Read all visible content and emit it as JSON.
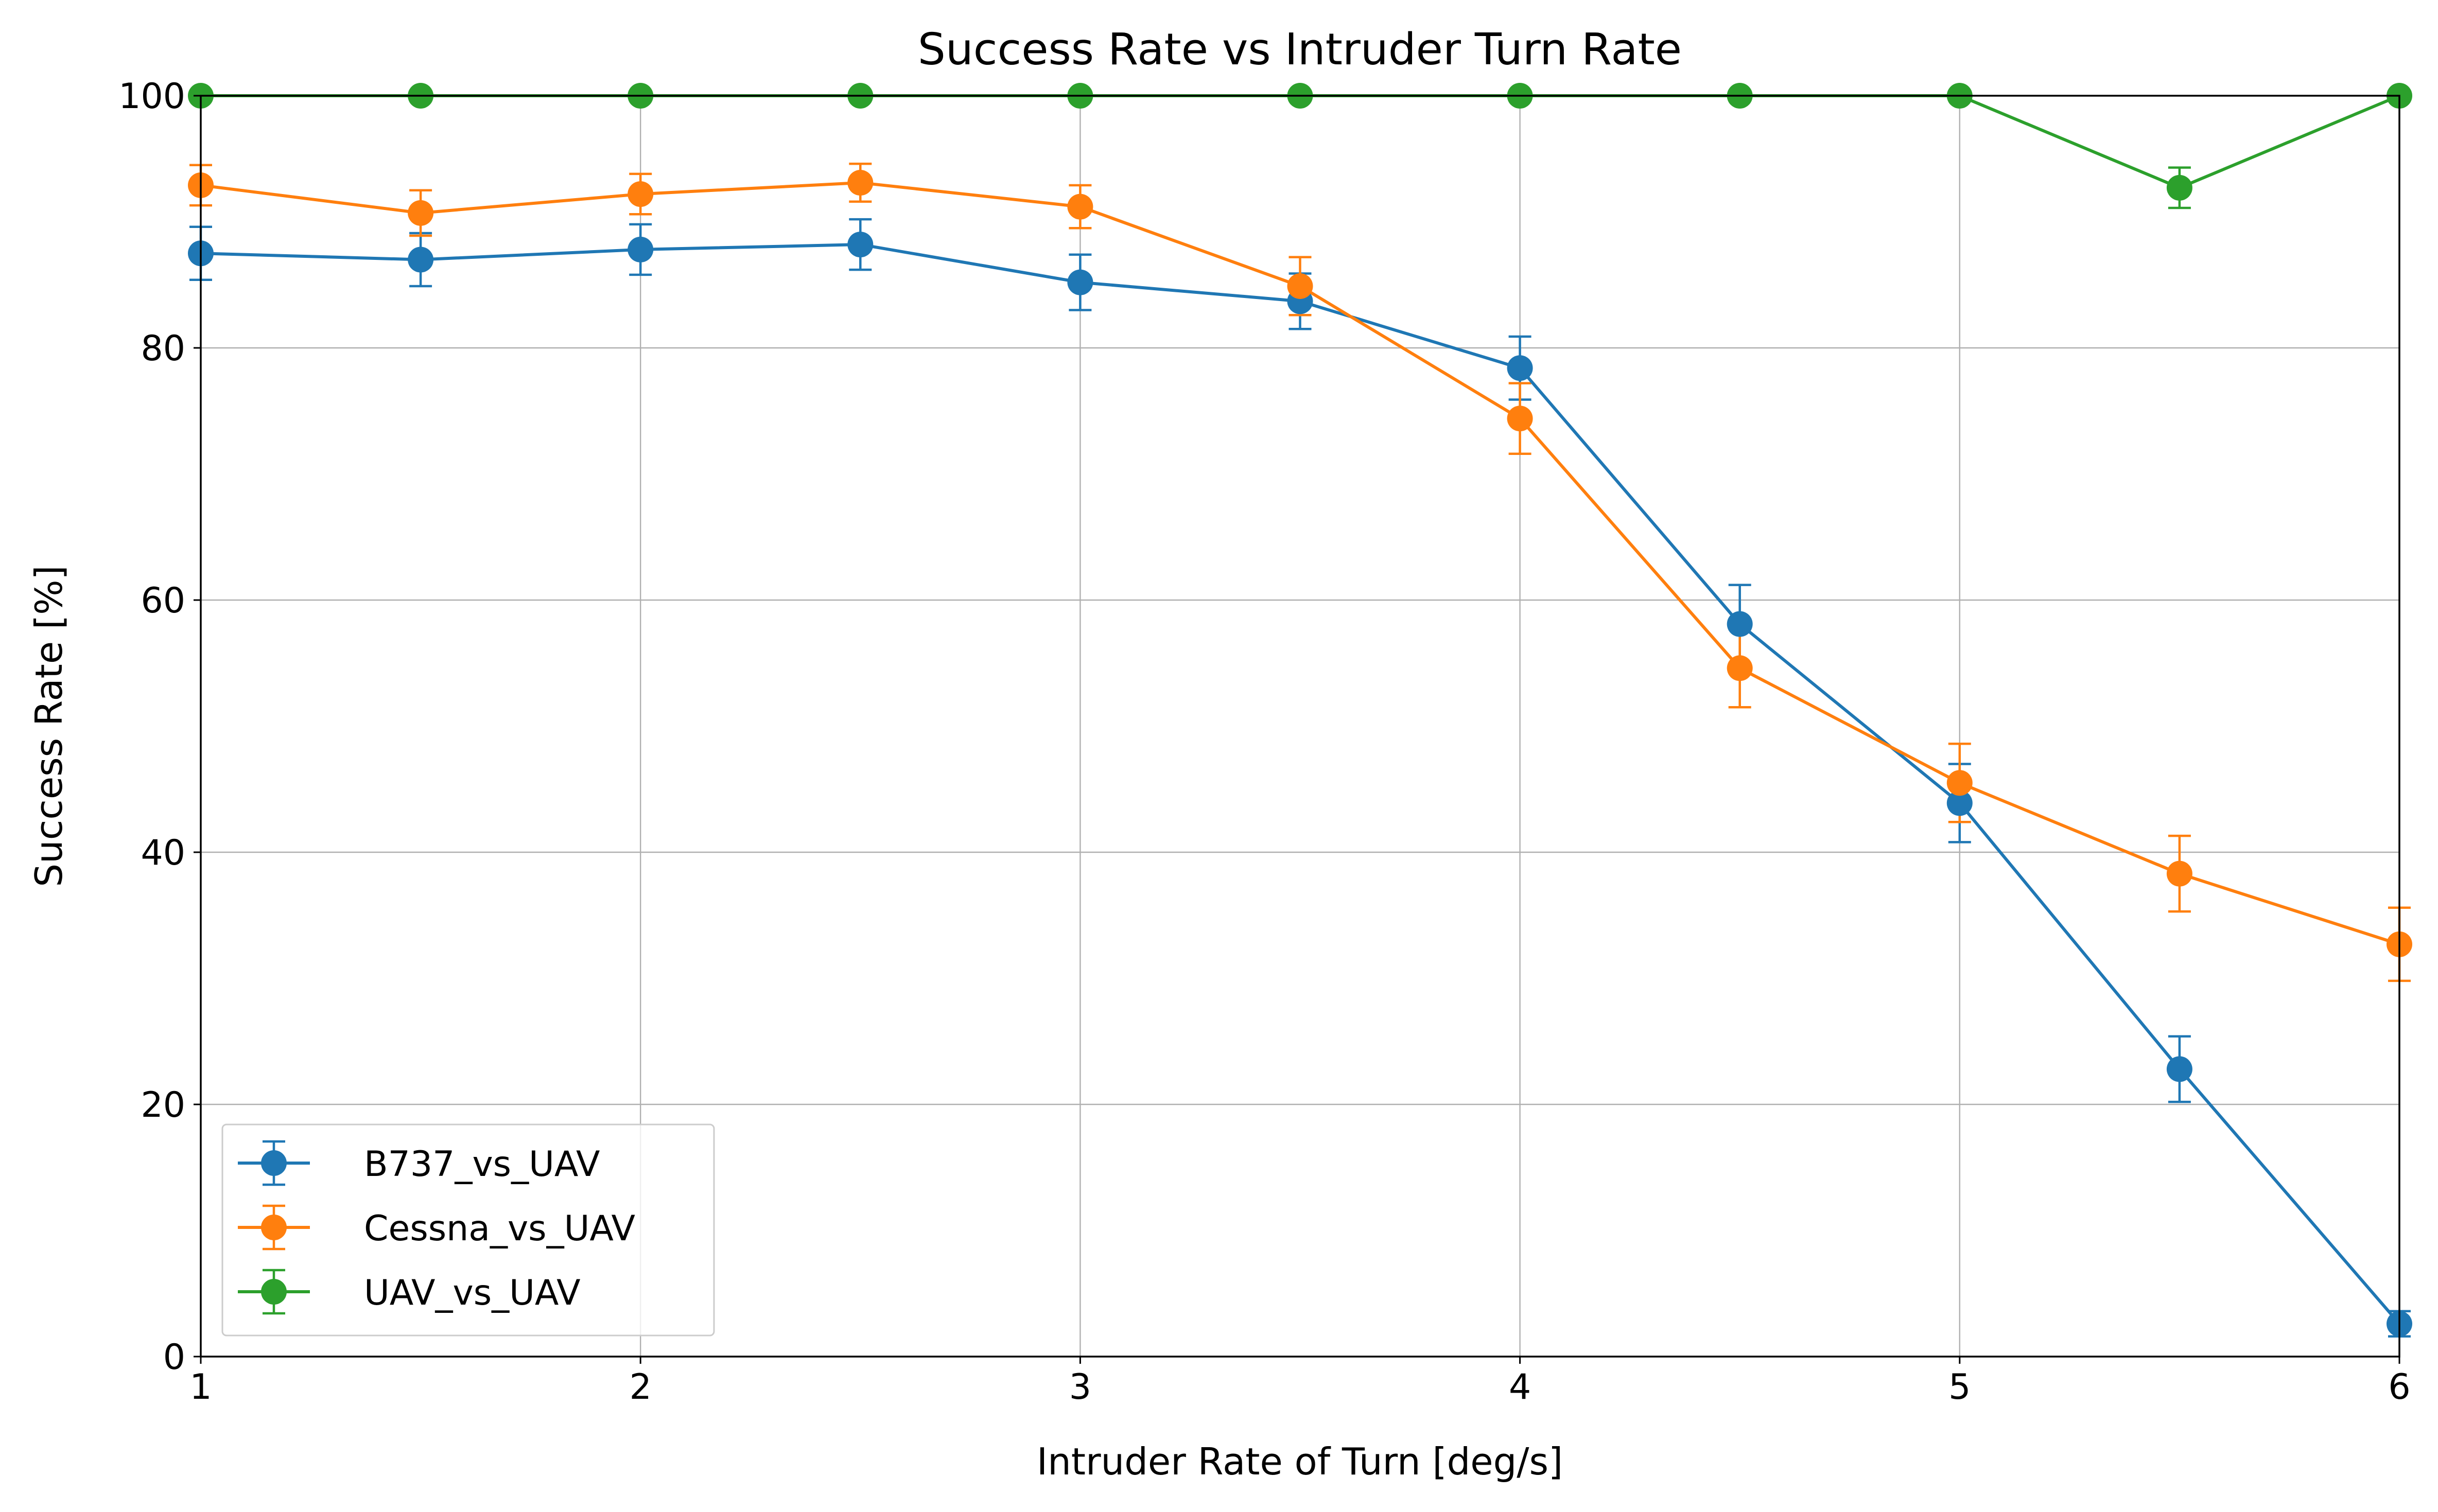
{
  "chart_data": {
    "type": "line",
    "title": "Success Rate vs Intruder Turn Rate",
    "xlabel": "Intruder Rate of Turn [deg/s]",
    "ylabel": "Success Rate [%]",
    "xlim": [
      1,
      6
    ],
    "ylim": [
      0,
      100
    ],
    "xticks": [
      1,
      2,
      3,
      4,
      5,
      6
    ],
    "yticks": [
      0,
      20,
      40,
      60,
      80,
      100
    ],
    "grid": true,
    "legend_position": "lower-left",
    "x": [
      1,
      1.5,
      2,
      2.5,
      3,
      3.5,
      4,
      4.5,
      5,
      5.5,
      6
    ],
    "series": [
      {
        "name": "B737_vs_UAV",
        "color": "#1f77b4",
        "values": [
          87.5,
          87.0,
          87.8,
          88.2,
          85.2,
          83.7,
          78.4,
          58.1,
          43.9,
          22.8,
          2.6
        ],
        "errors": [
          2.1,
          2.1,
          2.0,
          2.0,
          2.2,
          2.2,
          2.5,
          3.1,
          3.1,
          2.6,
          1.0
        ]
      },
      {
        "name": "Cessna_vs_UAV",
        "color": "#ff7f0e",
        "values": [
          92.9,
          90.7,
          92.2,
          93.1,
          91.2,
          84.9,
          74.4,
          54.6,
          45.5,
          38.3,
          32.7
        ],
        "errors": [
          1.6,
          1.8,
          1.6,
          1.5,
          1.7,
          2.3,
          2.8,
          3.1,
          3.1,
          3.0,
          2.9
        ]
      },
      {
        "name": "UAV_vs_UAV",
        "color": "#2ca02c",
        "values": [
          100,
          100,
          100,
          100,
          100,
          100,
          100,
          100,
          100,
          92.7,
          100
        ],
        "errors": [
          0,
          0,
          0,
          0,
          0,
          0,
          0,
          0,
          0,
          1.6,
          0
        ]
      }
    ]
  }
}
